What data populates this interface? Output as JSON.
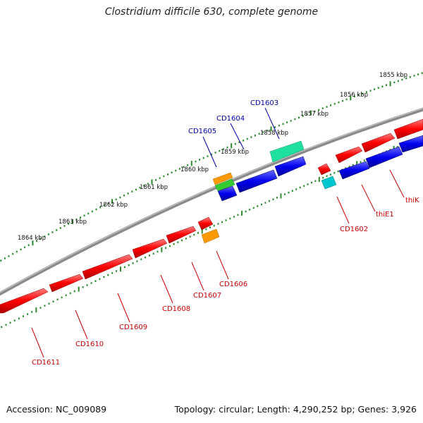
{
  "header": {
    "title": "Clostridium difficile 630, complete genome"
  },
  "footer": {
    "accession": "Accession: NC_009089",
    "summary": "Topology: circular; Length: 4,290,252 bp; Genes: 3,926"
  },
  "ruler": {
    "labels": [
      "1855 kbp",
      "1856 kbp",
      "1857 kbp",
      "1858 kbp",
      "1859 kbp",
      "1860 kbp",
      "1861 kbp",
      "1862 kbp",
      "1863 kbp",
      "1864 kbp"
    ]
  },
  "colors": {
    "backbone": "#8a8a8a",
    "forward_gene": "#ff0000",
    "reverse_gene": "#0000ee",
    "ruler_tick": "#2a8a2a",
    "label_forward": "#cc0000",
    "label_reverse": "#0000aa"
  },
  "gene_labels": {
    "forward": [
      "CD1611",
      "CD1610",
      "CD1609",
      "CD1608",
      "CD1607",
      "CD1606",
      "CD1602",
      "thiE1",
      "thiK"
    ],
    "reverse": [
      "CD1605",
      "CD1604",
      "CD1603"
    ]
  }
}
